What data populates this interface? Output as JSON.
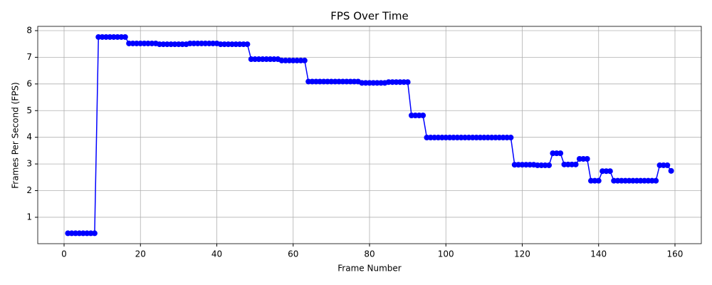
{
  "chart_data": {
    "type": "line",
    "title": "FPS Over Time",
    "xlabel": "Frame Number",
    "ylabel": "Frames Per Second (FPS)",
    "x": [
      1,
      2,
      3,
      4,
      5,
      6,
      7,
      8,
      9,
      10,
      11,
      12,
      13,
      14,
      15,
      16,
      17,
      18,
      19,
      20,
      21,
      22,
      23,
      24,
      25,
      26,
      27,
      28,
      29,
      30,
      31,
      32,
      33,
      34,
      35,
      36,
      37,
      38,
      39,
      40,
      41,
      42,
      43,
      44,
      45,
      46,
      47,
      48,
      49,
      50,
      51,
      52,
      53,
      54,
      55,
      56,
      57,
      58,
      59,
      60,
      61,
      62,
      63,
      64,
      65,
      66,
      67,
      68,
      69,
      70,
      71,
      72,
      73,
      74,
      75,
      76,
      77,
      78,
      79,
      80,
      81,
      82,
      83,
      84,
      85,
      86,
      87,
      88,
      89,
      90,
      91,
      92,
      93,
      94,
      95,
      96,
      97,
      98,
      99,
      100,
      101,
      102,
      103,
      104,
      105,
      106,
      107,
      108,
      109,
      110,
      111,
      112,
      113,
      114,
      115,
      116,
      117,
      118,
      119,
      120,
      121,
      122,
      123,
      124,
      125,
      126,
      127,
      128,
      129,
      130,
      131,
      132,
      133,
      134,
      135,
      136,
      137,
      138,
      139,
      140,
      141,
      142,
      143,
      144,
      145,
      146,
      147,
      148,
      149,
      150,
      151,
      152,
      153,
      154,
      155,
      156,
      157,
      158,
      159
    ],
    "series": [
      {
        "color": "#0000ff",
        "values": [
          0.4,
          0.4,
          0.4,
          0.4,
          0.4,
          0.4,
          0.4,
          0.4,
          7.76,
          7.76,
          7.76,
          7.76,
          7.76,
          7.76,
          7.76,
          7.76,
          7.52,
          7.52,
          7.52,
          7.52,
          7.52,
          7.52,
          7.52,
          7.52,
          7.49,
          7.49,
          7.49,
          7.49,
          7.49,
          7.49,
          7.49,
          7.49,
          7.52,
          7.52,
          7.52,
          7.52,
          7.52,
          7.52,
          7.52,
          7.52,
          7.49,
          7.49,
          7.49,
          7.49,
          7.49,
          7.49,
          7.49,
          7.49,
          6.93,
          6.93,
          6.93,
          6.93,
          6.93,
          6.93,
          6.93,
          6.93,
          6.88,
          6.88,
          6.88,
          6.88,
          6.88,
          6.88,
          6.88,
          6.09,
          6.09,
          6.09,
          6.09,
          6.09,
          6.09,
          6.09,
          6.09,
          6.09,
          6.09,
          6.09,
          6.09,
          6.09,
          6.09,
          6.04,
          6.04,
          6.04,
          6.04,
          6.04,
          6.04,
          6.04,
          6.07,
          6.07,
          6.07,
          6.07,
          6.07,
          6.07,
          4.82,
          4.82,
          4.82,
          4.82,
          3.99,
          3.99,
          3.99,
          3.99,
          3.99,
          3.99,
          3.99,
          3.99,
          3.99,
          3.99,
          3.99,
          3.99,
          3.99,
          3.99,
          3.99,
          3.99,
          3.99,
          3.99,
          3.99,
          3.99,
          3.99,
          3.99,
          3.99,
          2.97,
          2.97,
          2.97,
          2.97,
          2.97,
          2.97,
          2.95,
          2.95,
          2.95,
          2.95,
          3.4,
          3.4,
          3.4,
          2.98,
          2.98,
          2.98,
          2.98,
          3.19,
          3.19,
          3.19,
          2.37,
          2.37,
          2.37,
          2.73,
          2.73,
          2.73,
          2.37,
          2.37,
          2.37,
          2.37,
          2.37,
          2.37,
          2.37,
          2.37,
          2.37,
          2.37,
          2.37,
          2.37,
          2.95,
          2.95,
          2.95,
          2.74
        ]
      }
    ],
    "xlim": [
      -6.9,
      166.9
    ],
    "ylim": [
      0.01,
      8.16
    ],
    "xticks": [
      0,
      20,
      40,
      60,
      80,
      100,
      120,
      140,
      160
    ],
    "yticks": [
      1,
      2,
      3,
      4,
      5,
      6,
      7,
      8
    ],
    "grid": true
  }
}
